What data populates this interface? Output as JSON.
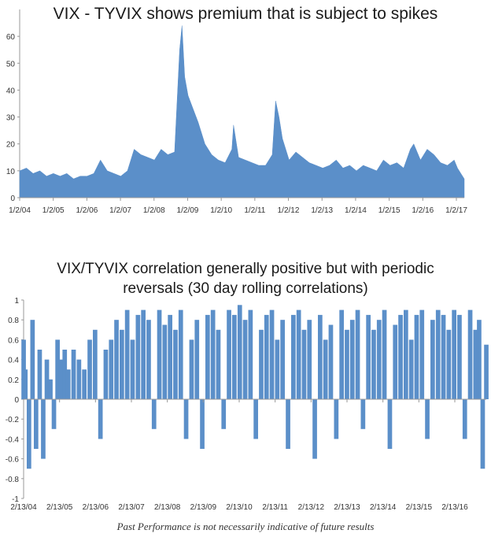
{
  "chart_data": [
    {
      "type": "area",
      "title": "VIX - TYVIX shows premium that is subject to spikes",
      "xlabel": "",
      "ylabel": "",
      "ylim": [
        0,
        70
      ],
      "yticks": [
        0,
        10,
        20,
        30,
        40,
        50,
        60
      ],
      "x_tick_labels": [
        "1/2/04",
        "1/2/05",
        "1/2/06",
        "1/2/07",
        "1/2/08",
        "1/2/09",
        "1/2/10",
        "1/2/11",
        "1/2/12",
        "1/2/13",
        "1/2/14",
        "1/2/15",
        "1/2/16",
        "1/2/17"
      ],
      "x_range_years": [
        2004.0,
        2017.2
      ],
      "color": "#5b8fc9",
      "series": [
        {
          "name": "VIX - TYVIX",
          "x": [
            2004.0,
            2004.2,
            2004.4,
            2004.6,
            2004.8,
            2005.0,
            2005.2,
            2005.4,
            2005.6,
            2005.8,
            2006.0,
            2006.2,
            2006.4,
            2006.6,
            2006.8,
            2007.0,
            2007.2,
            2007.4,
            2007.6,
            2007.8,
            2008.0,
            2008.2,
            2008.4,
            2008.6,
            2008.75,
            2008.82,
            2008.9,
            2009.0,
            2009.15,
            2009.3,
            2009.5,
            2009.7,
            2009.9,
            2010.1,
            2010.3,
            2010.35,
            2010.5,
            2010.7,
            2010.9,
            2011.1,
            2011.3,
            2011.5,
            2011.6,
            2011.7,
            2011.8,
            2012.0,
            2012.2,
            2012.4,
            2012.6,
            2012.8,
            2013.0,
            2013.2,
            2013.4,
            2013.6,
            2013.8,
            2014.0,
            2014.2,
            2014.4,
            2014.6,
            2014.8,
            2015.0,
            2015.2,
            2015.4,
            2015.6,
            2015.7,
            2015.9,
            2016.1,
            2016.3,
            2016.5,
            2016.7,
            2016.9,
            2017.0,
            2017.1,
            2017.2
          ],
          "values": [
            10,
            11,
            9,
            10,
            8,
            9,
            8,
            9,
            7,
            8,
            8,
            9,
            14,
            10,
            9,
            8,
            10,
            18,
            16,
            15,
            14,
            18,
            16,
            17,
            55,
            64,
            45,
            38,
            33,
            28,
            20,
            16,
            14,
            13,
            18,
            27,
            15,
            14,
            13,
            12,
            12,
            16,
            36,
            30,
            22,
            14,
            17,
            15,
            13,
            12,
            11,
            12,
            14,
            11,
            12,
            10,
            12,
            11,
            10,
            14,
            12,
            13,
            11,
            18,
            20,
            14,
            18,
            16,
            13,
            12,
            14,
            11,
            9,
            7
          ]
        }
      ]
    },
    {
      "type": "bar",
      "title": "VIX/TYVIX correlation generally positive but with periodic reversals (30 day rolling correlations)",
      "title_line1": "VIX/TYVIX correlation generally positive but with periodic",
      "title_line2": "reversals (30 day rolling correlations)",
      "xlabel": "",
      "ylabel": "",
      "ylim": [
        -1,
        1
      ],
      "yticks": [
        -1,
        -0.8,
        -0.6,
        -0.4,
        -0.2,
        0,
        0.2,
        0.4,
        0.6,
        0.8,
        1
      ],
      "x_tick_labels": [
        "2/13/04",
        "2/13/05",
        "2/13/06",
        "2/13/07",
        "2/13/08",
        "2/13/09",
        "2/13/10",
        "2/13/11",
        "2/13/12",
        "2/13/13",
        "2/13/14",
        "2/13/15",
        "2/13/16"
      ],
      "x_range_years": [
        2004.0,
        2016.95
      ],
      "color": "#5b8fc9",
      "series": [
        {
          "name": "30 day rolling correlation",
          "x": [
            2004.0,
            2004.05,
            2004.15,
            2004.25,
            2004.35,
            2004.45,
            2004.55,
            2004.65,
            2004.75,
            2004.85,
            2004.95,
            2005.05,
            2005.15,
            2005.25,
            2005.4,
            2005.55,
            2005.7,
            2005.85,
            2006.0,
            2006.15,
            2006.3,
            2006.45,
            2006.6,
            2006.75,
            2006.9,
            2007.05,
            2007.2,
            2007.35,
            2007.5,
            2007.65,
            2007.8,
            2007.95,
            2008.1,
            2008.25,
            2008.4,
            2008.55,
            2008.7,
            2008.85,
            2009.0,
            2009.15,
            2009.3,
            2009.45,
            2009.6,
            2009.75,
            2009.9,
            2010.05,
            2010.2,
            2010.35,
            2010.5,
            2010.65,
            2010.8,
            2010.95,
            2011.1,
            2011.25,
            2011.4,
            2011.55,
            2011.7,
            2011.85,
            2012.0,
            2012.15,
            2012.3,
            2012.45,
            2012.6,
            2012.75,
            2012.9,
            2013.05,
            2013.2,
            2013.35,
            2013.5,
            2013.65,
            2013.8,
            2013.95,
            2014.1,
            2014.25,
            2014.4,
            2014.55,
            2014.7,
            2014.85,
            2015.0,
            2015.15,
            2015.3,
            2015.45,
            2015.6,
            2015.75,
            2015.9,
            2016.05,
            2016.2,
            2016.35,
            2016.5,
            2016.65,
            2016.75,
            2016.85,
            2016.95
          ],
          "values": [
            0.6,
            0.3,
            -0.7,
            0.8,
            -0.5,
            0.5,
            -0.6,
            0.4,
            0.2,
            -0.3,
            0.6,
            0.4,
            0.5,
            0.3,
            0.5,
            0.4,
            0.3,
            0.6,
            0.7,
            -0.4,
            0.5,
            0.6,
            0.8,
            0.7,
            0.9,
            0.6,
            0.85,
            0.9,
            0.8,
            -0.3,
            0.9,
            0.75,
            0.85,
            0.7,
            0.9,
            -0.4,
            0.6,
            0.8,
            -0.5,
            0.85,
            0.9,
            0.7,
            -0.3,
            0.9,
            0.85,
            0.95,
            0.8,
            0.9,
            -0.4,
            0.7,
            0.85,
            0.9,
            0.6,
            0.8,
            -0.5,
            0.85,
            0.9,
            0.7,
            0.8,
            -0.6,
            0.85,
            0.6,
            0.75,
            -0.4,
            0.9,
            0.7,
            0.8,
            0.9,
            -0.3,
            0.85,
            0.7,
            0.8,
            0.9,
            -0.5,
            0.75,
            0.85,
            0.9,
            0.6,
            0.85,
            0.9,
            -0.4,
            0.8,
            0.9,
            0.85,
            0.7,
            0.9,
            0.85,
            -0.4,
            0.9,
            0.7,
            0.8,
            -0.7,
            0.55
          ]
        }
      ]
    }
  ],
  "footer": "Past Performance is not necessarily indicative of future results"
}
